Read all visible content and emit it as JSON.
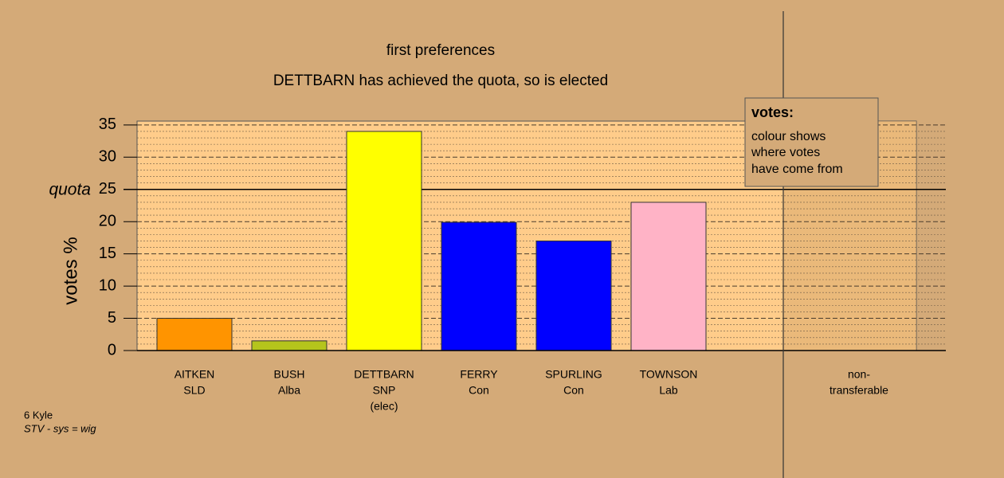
{
  "chart_data": {
    "type": "bar",
    "title": "first preferences",
    "subtitle": "DETTBARN has achieved the quota, so is elected",
    "y_label": "votes %",
    "categories": [
      [
        "AITKEN",
        "SLD"
      ],
      [
        "BUSH",
        "Alba"
      ],
      [
        "DETTBARN",
        "SNP",
        "(elec)"
      ],
      [
        "FERRY",
        "Con"
      ],
      [
        "SPURLING",
        "Con"
      ],
      [
        "TOWNSON",
        "Lab"
      ],
      [
        "non-",
        "transferable"
      ]
    ],
    "values": [
      5,
      1.5,
      34,
      19.9,
      17,
      23,
      0
    ],
    "colors": [
      "#ff9400",
      "#b5c41c",
      "#ffff00",
      "#0000ff",
      "#0000ff",
      "#ffb3c6",
      "#ffcc8a"
    ],
    "ylim": [
      0,
      35.6
    ],
    "yticks": [
      0,
      5,
      10,
      15,
      20,
      25,
      30,
      35
    ],
    "minor_yticks": [
      1,
      2,
      3,
      4,
      6,
      7,
      8,
      9,
      11,
      12,
      13,
      14,
      16,
      17,
      18,
      19,
      21,
      22,
      23,
      24,
      26,
      27,
      28,
      29,
      31,
      32,
      33,
      34
    ],
    "grid": true,
    "quota": 25,
    "quota_label": "quota",
    "legend": {
      "title": "votes:",
      "lines": [
        "colour shows",
        "where votes",
        "have come from"
      ]
    },
    "footer": [
      "6 Kyle",
      "STV - sys = wig"
    ]
  }
}
